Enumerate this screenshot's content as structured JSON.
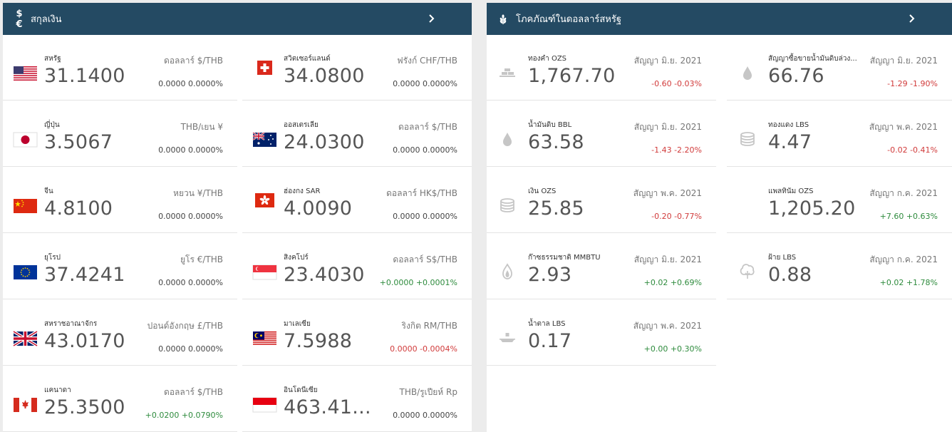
{
  "currency": {
    "header_icon": "$€",
    "title": "สกุลเงิน",
    "items": [
      {
        "name": "สหรัฐ",
        "value": "31.1400",
        "pair": "ดอลลาร์ $/THB",
        "change": "0.0000 0.0000%",
        "direction": "neutral",
        "flag": "us"
      },
      {
        "name": "สวิตเซอร์แลนด์",
        "value": "34.0800",
        "pair": "ฟรังก์ CHF/THB",
        "change": "0.0000 0.0000%",
        "direction": "neutral",
        "flag": "ch"
      },
      {
        "name": "ญี่ปุ่น",
        "value": "3.5067",
        "pair": "THB/เยน ¥",
        "change": "0.0000 0.0000%",
        "direction": "neutral",
        "flag": "jp"
      },
      {
        "name": "ออสเตรเลีย",
        "value": "24.0300",
        "pair": "ดอลลาร์ $/THB",
        "change": "0.0000 0.0000%",
        "direction": "neutral",
        "flag": "au"
      },
      {
        "name": "จีน",
        "value": "4.8100",
        "pair": "หยวน ¥/THB",
        "change": "0.0000 0.0000%",
        "direction": "neutral",
        "flag": "cn"
      },
      {
        "name": "ฮ่องกง SAR",
        "value": "4.0090",
        "pair": "ดอลลาร์ HK$/THB",
        "change": "0.0000 0.0000%",
        "direction": "neutral",
        "flag": "hk"
      },
      {
        "name": "ยุโรป",
        "value": "37.4241",
        "pair": "ยูโร €/THB",
        "change": "0.0000 0.0000%",
        "direction": "neutral",
        "flag": "eu"
      },
      {
        "name": "สิงคโปร์",
        "value": "23.4030",
        "pair": "ดอลลาร์ S$/THB",
        "change": "+0.0000 +0.0001%",
        "direction": "up",
        "flag": "sg"
      },
      {
        "name": "สหราชอาณาจักร",
        "value": "43.0170",
        "pair": "ปอนด์อังกฤษ £/THB",
        "change": "0.0000 0.0000%",
        "direction": "neutral",
        "flag": "gb"
      },
      {
        "name": "มาเลเซีย",
        "value": "7.5988",
        "pair": "ริงกิต RM/THB",
        "change": "0.0000 -0.0004%",
        "direction": "down",
        "flag": "my"
      },
      {
        "name": "แคนาดา",
        "value": "25.3500",
        "pair": "ดอลลาร์ $/THB",
        "change": "+0.0200 +0.0790%",
        "direction": "up",
        "flag": "ca"
      },
      {
        "name": "อินโดนีเซีย",
        "value": "463.41...",
        "pair": "THB/รูเปียห์ Rp",
        "change": "0.0000 0.0000%",
        "direction": "neutral",
        "flag": "id"
      }
    ]
  },
  "commodities": {
    "header_icon": "wheat-icon",
    "title": "โภคภัณฑ์ในดอลลาร์สหรัฐ",
    "items": [
      {
        "name": "ทองคำ OZS",
        "value": "1,767.70",
        "contract": "สัญญา มิ.ย. 2021",
        "change": "-0.60 -0.03%",
        "direction": "down",
        "icon": "gold-bars-icon"
      },
      {
        "name": "สัญญาซื้อขายน้ำมันดิบล่วง...",
        "value": "66.76",
        "contract": "สัญญา มิ.ย. 2021",
        "change": "-1.29 -1.90%",
        "direction": "down",
        "icon": "oil-drop-icon"
      },
      {
        "name": "น้ำมันดิบ BBL",
        "value": "63.58",
        "contract": "สัญญา มิ.ย. 2021",
        "change": "-1.43 -2.20%",
        "direction": "down",
        "icon": "oil-drop-icon"
      },
      {
        "name": "ทองแดง LBS",
        "value": "4.47",
        "contract": "สัญญา พ.ค. 2021",
        "change": "-0.02 -0.41%",
        "direction": "down",
        "icon": "coin-stack-icon"
      },
      {
        "name": "เงิน OZS",
        "value": "25.85",
        "contract": "สัญญา พ.ค. 2021",
        "change": "-0.20 -0.77%",
        "direction": "down",
        "icon": "coin-stack-icon"
      },
      {
        "name": "แพลทินัม OZS",
        "value": "1,205.20",
        "contract": "สัญญา ก.ค. 2021",
        "change": "+7.60 +0.63%",
        "direction": "up",
        "icon": "none"
      },
      {
        "name": "ก๊าซธรรมชาติ MMBTU",
        "value": "2.93",
        "contract": "สัญญา มิ.ย. 2021",
        "change": "+0.02 +0.69%",
        "direction": "up",
        "icon": "flame-icon"
      },
      {
        "name": "ฝ้าย LBS",
        "value": "0.88",
        "contract": "สัญญา ก.ค. 2021",
        "change": "+0.02 +1.78%",
        "direction": "up",
        "icon": "cotton-icon"
      },
      {
        "name": "น้ำตาล LBS",
        "value": "0.17",
        "contract": "สัญญา พ.ค. 2021",
        "change": "+0.00 +0.30%",
        "direction": "up",
        "icon": "sugar-icon"
      }
    ]
  }
}
